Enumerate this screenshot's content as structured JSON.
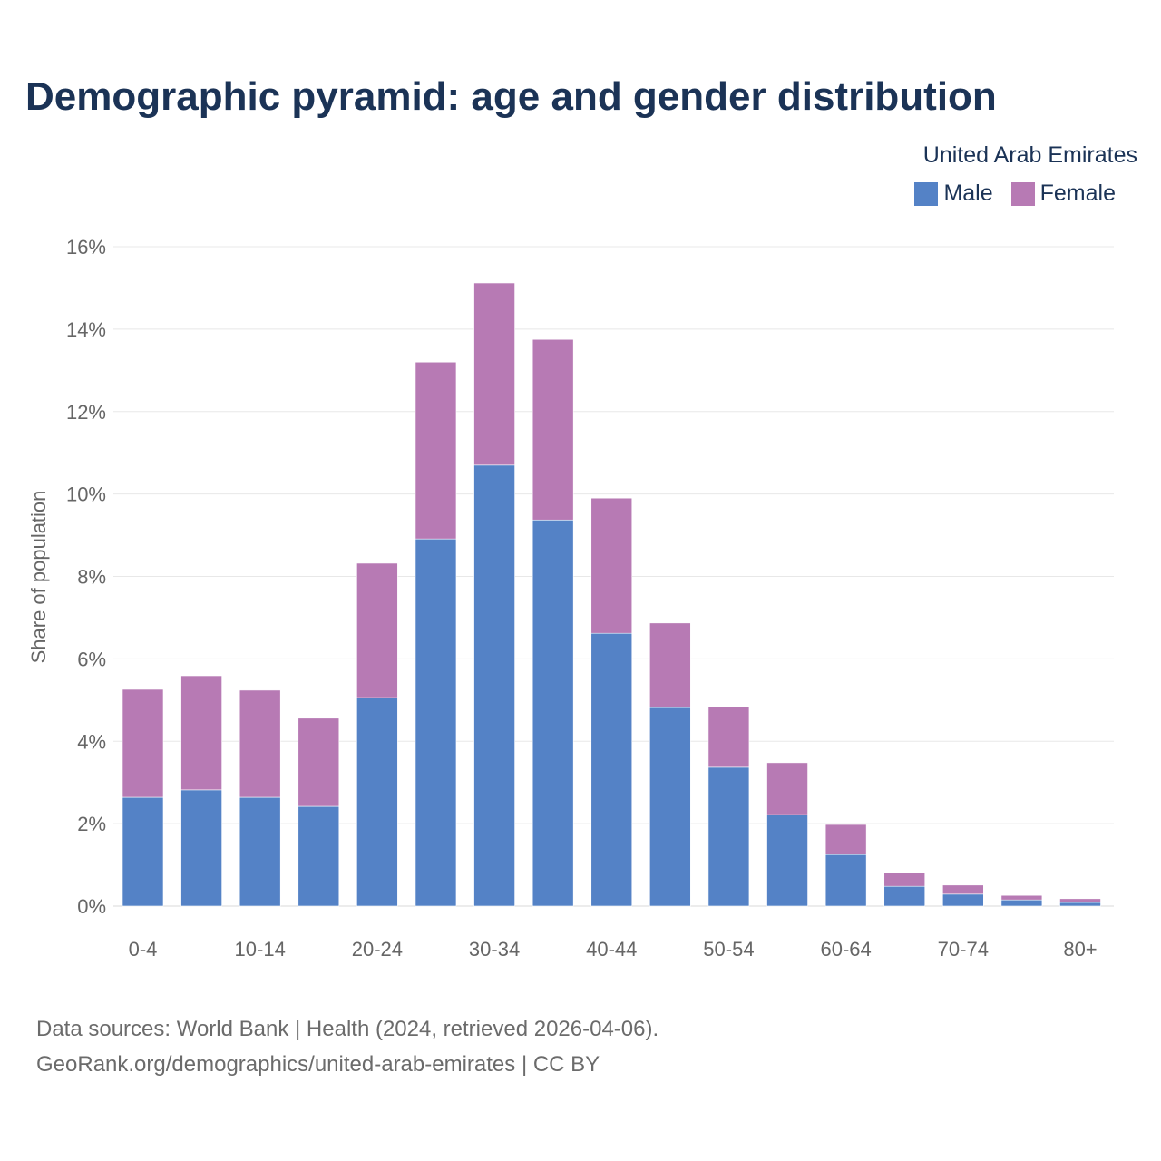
{
  "chart_data": {
    "type": "bar",
    "stacked": true,
    "title": "Demographic pyramid: age and gender distribution",
    "subtitle": "United Arab Emirates",
    "xlabel": "",
    "ylabel": "Share of population",
    "ylim": [
      0,
      16
    ],
    "yticks": [
      0,
      2,
      4,
      6,
      8,
      10,
      12,
      14,
      16
    ],
    "ytick_labels": [
      "0%",
      "2%",
      "4%",
      "6%",
      "8%",
      "10%",
      "12%",
      "14%",
      "16%"
    ],
    "categories": [
      "0-4",
      "5-9",
      "10-14",
      "15-19",
      "20-24",
      "25-29",
      "30-34",
      "35-39",
      "40-44",
      "45-49",
      "50-54",
      "55-59",
      "60-64",
      "65-69",
      "70-74",
      "75-79",
      "80+"
    ],
    "xtick_labels": [
      "0-4",
      "",
      "10-14",
      "",
      "20-24",
      "",
      "30-34",
      "",
      "40-44",
      "",
      "50-54",
      "",
      "60-64",
      "",
      "70-74",
      "",
      "80+"
    ],
    "grid": true,
    "legend_position": "top-right",
    "series": [
      {
        "name": "Male",
        "color": "#5482c6",
        "values": [
          2.64,
          2.82,
          2.64,
          2.42,
          5.06,
          8.91,
          10.7,
          9.37,
          6.62,
          4.82,
          3.37,
          2.22,
          1.25,
          0.48,
          0.29,
          0.15,
          0.09
        ]
      },
      {
        "name": "Female",
        "color": "#b77ab4",
        "values": [
          2.62,
          2.77,
          2.6,
          2.14,
          3.26,
          4.29,
          4.42,
          4.38,
          3.28,
          2.05,
          1.47,
          1.26,
          0.73,
          0.33,
          0.22,
          0.11,
          0.09
        ]
      }
    ]
  },
  "footer": {
    "source_line1": "Data sources: World Bank | Health (2024, retrieved 2026-04-06).",
    "source_line2": "GeoRank.org/demographics/united-arab-emirates | CC BY"
  }
}
